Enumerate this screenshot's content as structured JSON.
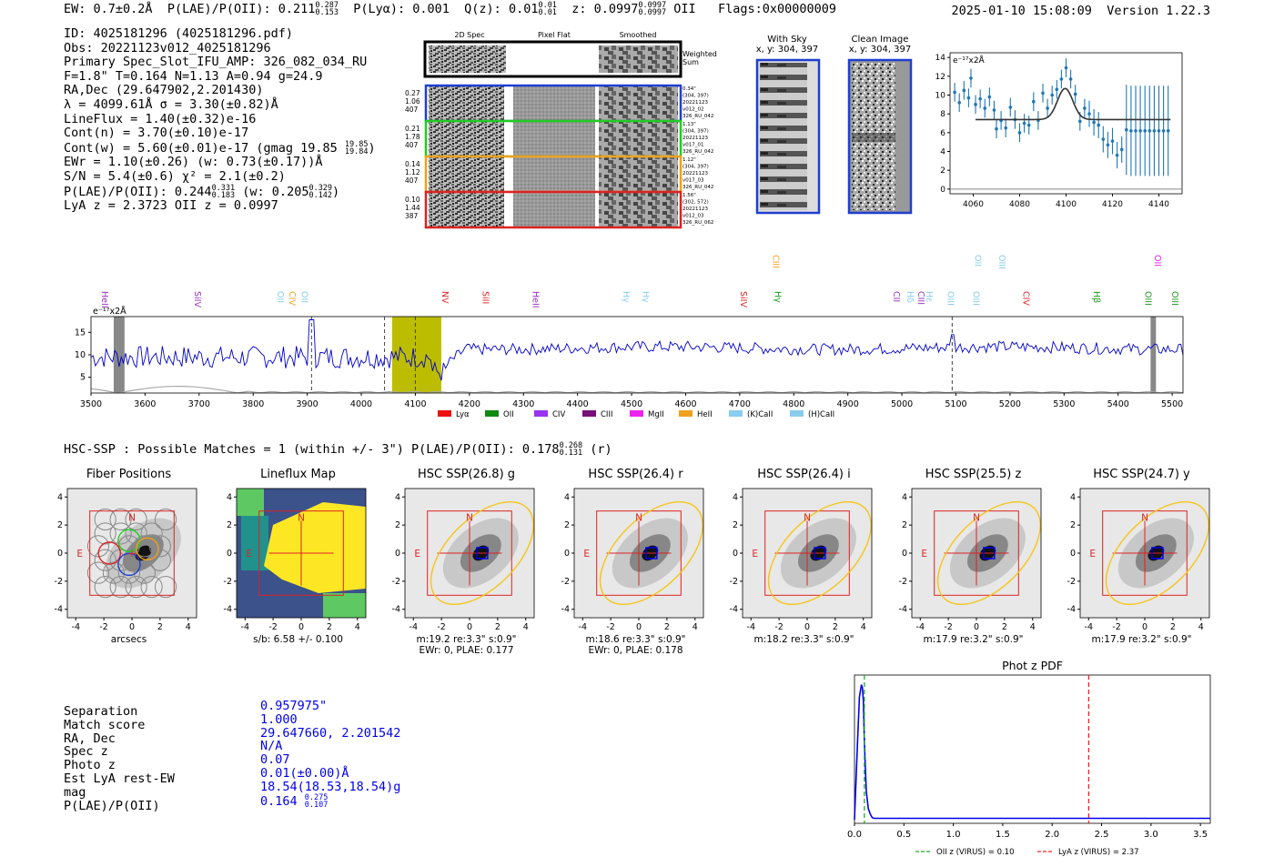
{
  "header": {
    "ew": "EW: 0.7±0.2Å",
    "plae_label": "P(LAE)/P(OII): 0.211",
    "plae_hi": "0.287",
    "plae_lo": "0.153",
    "plya": "P(Lyα): 0.001",
    "qz_label": "Q(z): 0.01",
    "qz_hi": "0.01",
    "qz_lo": "0.01",
    "z_label": "z: 0.0997",
    "z_hi": "0.0997",
    "z_lo": "0.0997",
    "z_line": "OII",
    "flags": "Flags:0x00000009",
    "datetime": "2025-01-10 15:08:09",
    "version": "Version 1.22.3"
  },
  "info": {
    "id": "ID: 4025181296 (4025181296.pdf)",
    "obs": "Obs: 20221123v012_4025181296",
    "primary": "Primary Spec_Slot_IFU_AMP: 326_082_034_RU",
    "fwhm": "F=1.8\"  T=0.164  N=1.13  A=0.94  g=24.9",
    "radec": "RA,Dec (29.647902,2.201430)",
    "lambda": "λ = 4099.61Å  σ = 3.30(±0.82)Å",
    "lineflux": "LineFlux = 1.40(±0.32)e-16",
    "contn": "Cont(n) = 3.70(±0.10)e-17",
    "contw": "Cont(w) = 5.60(±0.01)e-17 (gmag 19.85",
    "contw_hi": "19.85",
    "contw_lo": "19.84",
    "contw_end": ")",
    "ewr": "EWr = 1.10(±0.26) (w: 0.73(±0.17))Å",
    "sn": "S/N = 5.4(±0.6)  χ² = 2.1(±0.2)",
    "plae": "P(LAE)/P(OII): 0.244",
    "plae_hi": "0.331",
    "plae_lo": "0.183",
    "plae_w": "(w: 0.205",
    "plae_w_hi": "0.329",
    "plae_w_lo": "0.142",
    "plae_end": ")",
    "lya": "LyA z = 2.3723  OII z = 0.0997"
  },
  "spec2d": {
    "cols": [
      "2D Spec",
      "Pixel Flat",
      "Smoothed"
    ],
    "weighted": [
      "Weighted",
      "Sum"
    ],
    "rows": [
      {
        "l": [
          "0.27",
          "1.06",
          "407"
        ],
        "r": [
          "0.34\"",
          "(304, 397)",
          "20221123",
          "v012_02",
          "326_RU_042"
        ],
        "color": "#1f3fd0"
      },
      {
        "l": [
          "0.21",
          "1.78",
          "407"
        ],
        "r": [
          "1.13\"",
          "(304, 397)",
          "20221123",
          "v017_01",
          "326_RU_042"
        ],
        "color": "#22cc22"
      },
      {
        "l": [
          "0.14",
          "1.12",
          "407"
        ],
        "r": [
          "1.12\"",
          "(304, 397)",
          "20221123",
          "v017_03",
          "326_RU_042"
        ],
        "color": "#f0a020"
      },
      {
        "l": [
          "0.10",
          "1.44",
          "387"
        ],
        "r": [
          "1.56\"",
          "(302, 572)",
          "20221123",
          "v012_03",
          "326_RU_062"
        ],
        "color": "#dd2222"
      }
    ]
  },
  "sky": {
    "title": "With Sky",
    "coords": "x, y: 304, 397"
  },
  "clean": {
    "title": "Clean Image",
    "coords": "x, y: 304, 397"
  },
  "zoom_plot": {
    "unit": "e⁻¹⁷x2Å",
    "xticks": [
      "4060",
      "4080",
      "4100",
      "4120",
      "4140"
    ],
    "yticks": [
      "0",
      "2",
      "4",
      "6",
      "8",
      "10",
      "12",
      "14"
    ],
    "xlim": [
      4050,
      4150
    ],
    "ylim": [
      -0.5,
      14.5
    ],
    "points": [
      [
        4052,
        10.3
      ],
      [
        4054,
        9.2
      ],
      [
        4056,
        10.5
      ],
      [
        4058,
        9.7
      ],
      [
        4059,
        11.8
      ],
      [
        4061,
        9.0
      ],
      [
        4063,
        9.6
      ],
      [
        4065,
        8.6
      ],
      [
        4067,
        9.8
      ],
      [
        4069,
        8.4
      ],
      [
        4070,
        6.4
      ],
      [
        4072,
        7.3
      ],
      [
        4074,
        6.5
      ],
      [
        4076,
        8.7
      ],
      [
        4078,
        7.4
      ],
      [
        4080,
        6.0
      ],
      [
        4082,
        7.0
      ],
      [
        4084,
        6.8
      ],
      [
        4086,
        9.3
      ],
      [
        4088,
        7.3
      ],
      [
        4090,
        10.2
      ],
      [
        4092,
        8.6
      ],
      [
        4094,
        10.0
      ],
      [
        4096,
        10.6
      ],
      [
        4098,
        11.7
      ],
      [
        4100,
        12.9
      ],
      [
        4102,
        11.7
      ],
      [
        4104,
        10.1
      ],
      [
        4106,
        7.2
      ],
      [
        4108,
        8.6
      ],
      [
        4110,
        8.0
      ],
      [
        4112,
        7.1
      ],
      [
        4114,
        6.8
      ],
      [
        4116,
        5.3
      ],
      [
        4118,
        4.7
      ],
      [
        4120,
        5.1
      ],
      [
        4122,
        3.6
      ],
      [
        4124,
        4.2
      ],
      [
        4126,
        6.3
      ],
      [
        4128,
        6.2
      ],
      [
        4130,
        6.2
      ],
      [
        4132,
        6.2
      ],
      [
        4134,
        6.2
      ],
      [
        4136,
        6.2
      ],
      [
        4138,
        6.2
      ],
      [
        4140,
        6.2
      ],
      [
        4142,
        6.2
      ],
      [
        4144,
        6.2
      ]
    ],
    "fit": {
      "base": 7.4,
      "amp": 3.3,
      "center": 4099.6,
      "sigma": 3.3,
      "range": [
        4061,
        4145
      ]
    }
  },
  "spectrum": {
    "unit": "e⁻¹⁷x2Å",
    "xticks": [
      "3500",
      "3600",
      "3700",
      "3800",
      "3900",
      "4000",
      "4100",
      "4200",
      "4300",
      "4400",
      "4500",
      "4600",
      "4700",
      "4800",
      "4900",
      "5000",
      "5100",
      "5200",
      "5300",
      "5400",
      "5500"
    ],
    "yticks": [
      "5",
      "10",
      "15"
    ],
    "xlim": [
      3500,
      5520
    ],
    "ylim": [
      1.5,
      18.5
    ],
    "lines": [
      {
        "n": "HeII",
        "x": 3525,
        "c": "#9a30c0",
        "row": 0
      },
      {
        "n": "SiIV",
        "x": 3697,
        "c": "#9a30c0",
        "row": 0
      },
      {
        "n": "OII",
        "x": 3850,
        "c": "#88ccee",
        "row": 0
      },
      {
        "n": "CIV",
        "x": 3872,
        "c": "#f0a020",
        "row": 0
      },
      {
        "n": "OII",
        "x": 3895,
        "c": "#88ccee",
        "row": 0
      },
      {
        "n": "NV",
        "x": 4155,
        "c": "#dd2222",
        "row": 0
      },
      {
        "n": "SiII",
        "x": 4230,
        "c": "#dd2222",
        "row": 0
      },
      {
        "n": "HeII",
        "x": 4322,
        "c": "#9a30c0",
        "row": 0
      },
      {
        "n": "Hγ",
        "x": 4490,
        "c": "#88ccee",
        "row": 0
      },
      {
        "n": "Hγ",
        "x": 4526,
        "c": "#88ccee",
        "row": 0
      },
      {
        "n": "SiIV",
        "x": 4707,
        "c": "#dd2222",
        "row": 0
      },
      {
        "n": "Hγ",
        "x": 4770,
        "c": "#229922",
        "row": 0
      },
      {
        "n": "CIII",
        "x": 4767,
        "c": "#f0a020",
        "row": 1
      },
      {
        "n": "CII",
        "x": 4990,
        "c": "#9a30c0",
        "row": 0
      },
      {
        "n": "Hδ",
        "x": 5015,
        "c": "#88ccee",
        "row": 0
      },
      {
        "n": "CIII",
        "x": 5035,
        "c": "#9a30c0",
        "row": 0
      },
      {
        "n": "Hε",
        "x": 5050,
        "c": "#88ccee",
        "row": 0
      },
      {
        "n": "OIII",
        "x": 5090,
        "c": "#88ccee",
        "row": 0
      },
      {
        "n": "OIII",
        "x": 5137,
        "c": "#88ccee",
        "row": 0
      },
      {
        "n": "OII",
        "x": 5140,
        "c": "#88ccee",
        "row": 1
      },
      {
        "n": "OIII",
        "x": 5185,
        "c": "#88ccee",
        "row": 1
      },
      {
        "n": "CIV",
        "x": 5230,
        "c": "#dd2222",
        "row": 0
      },
      {
        "n": "Hβ",
        "x": 5360,
        "c": "#229922",
        "row": 0
      },
      {
        "n": "OIII",
        "x": 5455,
        "c": "#229922",
        "row": 0
      },
      {
        "n": "OII",
        "x": 5473,
        "c": "#ee22ee",
        "row": 1
      },
      {
        "n": "OIII",
        "x": 5505,
        "c": "#229922",
        "row": 0
      }
    ],
    "legend": [
      {
        "n": "Lyα",
        "c": "#ee1111"
      },
      {
        "n": "OII",
        "c": "#118811"
      },
      {
        "n": "CIV",
        "c": "#9933ee"
      },
      {
        "n": "CIII",
        "c": "#771177"
      },
      {
        "n": "MgII",
        "c": "#ee22ee"
      },
      {
        "n": "HeII",
        "c": "#f0a020"
      },
      {
        "n": "(K)CaII",
        "c": "#88ccee"
      },
      {
        "n": "(H)CaII",
        "c": "#88ccee"
      }
    ]
  },
  "hsc": {
    "header": "HSC-SSP : Possible Matches = 1 (within +/- 3\")  P(LAE)/P(OII): 0.178",
    "header_hi": "0.268",
    "header_lo": "0.131",
    "header_end": "(r)",
    "ticks": [
      "-4",
      "-2",
      "0",
      "2",
      "4"
    ],
    "N": "N",
    "E": "E",
    "cutouts": [
      {
        "title": "Fiber Positions",
        "cap": [
          "arcsecs"
        ]
      },
      {
        "title": "Lineflux Map",
        "cap": [
          "s/b: 6.58 +/- 0.100"
        ]
      },
      {
        "title": "HSC SSP(26.8) g",
        "cap": [
          "m:19.2  re:3.3\"  s:0.9\"",
          "EWr: 0, PLAE: 0.177"
        ]
      },
      {
        "title": "HSC SSP(26.4) r",
        "cap": [
          "m:18.6  re:3.3\"  s:0.9\"",
          "EWr: 0, PLAE: 0.178"
        ]
      },
      {
        "title": "HSC SSP(26.4) i",
        "cap": [
          "m:18.2  re:3.3\"  s:0.9\""
        ]
      },
      {
        "title": "HSC SSP(25.5) z",
        "cap": [
          "m:17.9  re:3.2\"  s:0.9\""
        ]
      },
      {
        "title": "HSC SSP(24.7) y",
        "cap": [
          "m:17.9  re:3.2\"  s:0.9\""
        ]
      }
    ]
  },
  "match_table": {
    "rows": [
      {
        "k": "Separation",
        "v": "0.957975\""
      },
      {
        "k": "Match score",
        "v": "1.000"
      },
      {
        "k": "RA, Dec",
        "v": "29.647660, 2.201542"
      },
      {
        "k": "Spec z",
        "v": "N/A"
      },
      {
        "k": "Photo z",
        "v": "0.07"
      },
      {
        "k": "Est LyA rest-EW",
        "v": "0.01(±0.00)Å"
      },
      {
        "k": "mag",
        "v": "18.54(18.53,18.54)g"
      },
      {
        "k": "P(LAE)/P(OII)",
        "v": "0.164",
        "hi": "0.275",
        "lo": "0.107"
      }
    ]
  },
  "chart_data": {
    "type": "line",
    "title": "Phot z PDF",
    "xlim": [
      0,
      3.6
    ],
    "xticks": [
      "0.0",
      "0.5",
      "1.0",
      "1.5",
      "2.0",
      "2.5",
      "3.0",
      "3.5"
    ],
    "x": [
      0.0,
      0.03,
      0.05,
      0.07,
      0.08,
      0.09,
      0.1,
      0.12,
      0.14,
      0.16,
      0.18,
      0.2,
      0.5,
      1.0,
      1.5,
      2.0,
      2.5,
      3.0,
      3.6
    ],
    "series": [
      {
        "values": [
          0.0,
          0.55,
          0.88,
          0.97,
          0.95,
          0.85,
          0.55,
          0.2,
          0.08,
          0.04,
          0.015,
          0.01,
          0.01,
          0.01,
          0.01,
          0.01,
          0.01,
          0.01,
          0.01
        ]
      }
    ],
    "vlines": [
      {
        "x": 0.1,
        "color": "#22aa22",
        "label": "OII z (VIRUS) = 0.10"
      },
      {
        "x": 2.37,
        "color": "#ee2222",
        "label": "LyA z (VIRUS) = 2.37"
      }
    ],
    "line_color": "#0000ee"
  }
}
